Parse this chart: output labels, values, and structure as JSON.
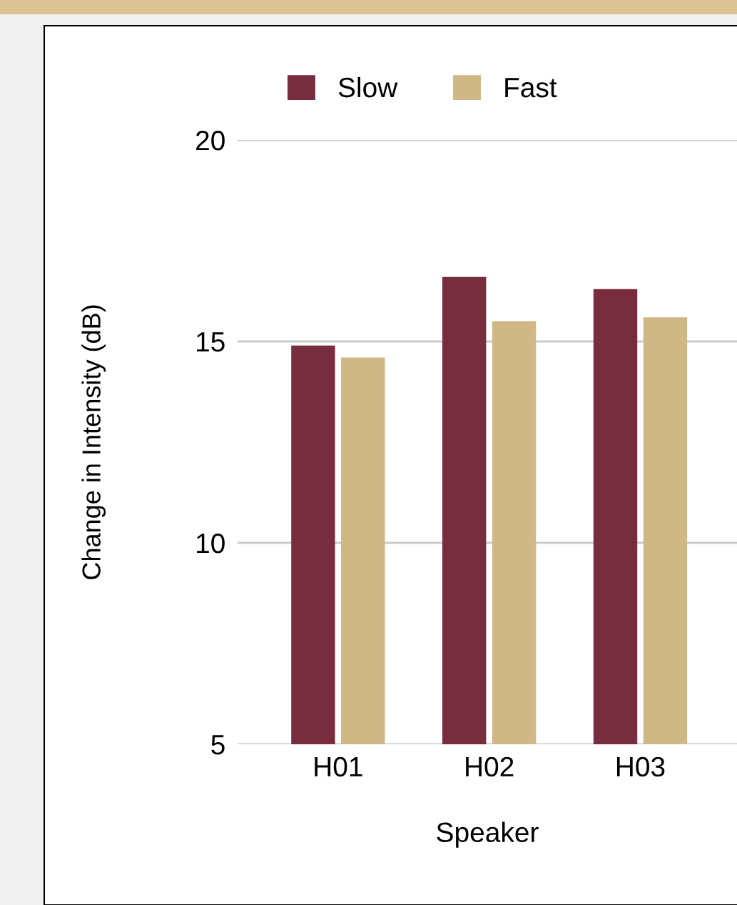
{
  "chart_data": {
    "type": "bar",
    "xlabel": "Speaker",
    "ylabel": "Change in Intensity (dB)",
    "categories": [
      "H01",
      "H02",
      "H03"
    ],
    "series": [
      {
        "name": "Slow",
        "color": "#782d3f",
        "values": [
          14.9,
          16.6,
          16.3
        ]
      },
      {
        "name": "Fast",
        "color": "#cfb885",
        "values": [
          14.6,
          15.5,
          15.6
        ]
      }
    ],
    "ylim": [
      5,
      20
    ],
    "yticks": [
      5,
      10,
      15,
      20
    ],
    "grid": "y",
    "legend": "top"
  }
}
